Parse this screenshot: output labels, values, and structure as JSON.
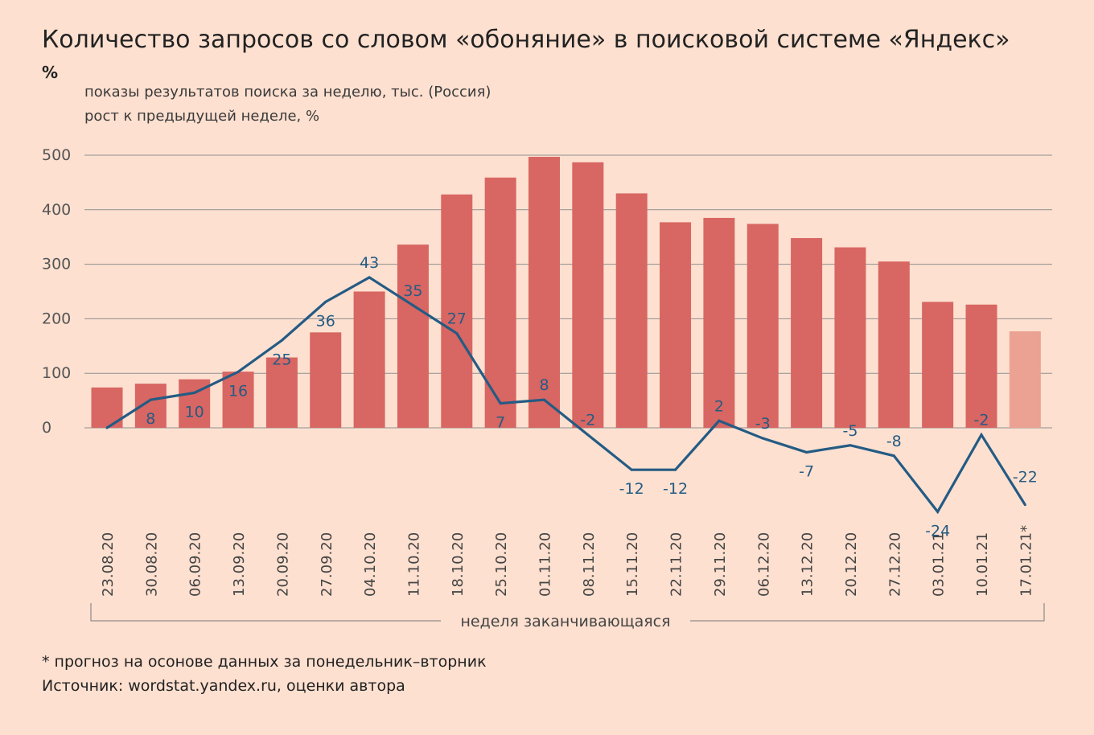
{
  "title": "Количество запросов со словом «обоняние» в поисковой системе «Яндекс»",
  "unit": "%",
  "legend": {
    "bars": "показы результатов поиска за неделю, тыс. (Россия)",
    "line": "рост к предыдущей неделе, %"
  },
  "footnote": "* прогноз на осонове данных за понедельник–вторник",
  "source": "Источник: wordstat.yandex.ru, оценки автора",
  "colors": {
    "bar": "#d86662",
    "bar_forecast": "#eba292",
    "line": "#245b84",
    "grid": "#8f8f8f",
    "background": "#fde0d0"
  },
  "chart_data": {
    "type": "bar",
    "xlabel": "неделя заканчивающаяся",
    "ylim": [
      0,
      500
    ],
    "yticks": [
      "0",
      "100",
      "200",
      "300",
      "400",
      "500"
    ],
    "categories": [
      "23.08.20",
      "30.08.20",
      "06.09.20",
      "13.09.20",
      "20.09.20",
      "27.09.20",
      "04.10.20",
      "11.10.20",
      "18.10.20",
      "25.10.20",
      "01.11.20",
      "08.11.20",
      "15.11.20",
      "22.11.20",
      "29.11.20",
      "06.12.20",
      "13.12.20",
      "20.12.20",
      "27.12.20",
      "03.01.21",
      "10.01.21",
      "17.01.21*"
    ],
    "series": [
      {
        "name": "показы результатов поиска за неделю, тыс. (Россия)",
        "type": "bar",
        "values": [
          74,
          81,
          89,
          103,
          129,
          175,
          250,
          336,
          428,
          459,
          497,
          487,
          430,
          377,
          385,
          374,
          348,
          331,
          305,
          231,
          226,
          177
        ],
        "forecast_last": true
      },
      {
        "name": "рост к предыдущей неделе, %",
        "type": "line",
        "values": [
          0,
          8,
          10,
          16,
          25,
          36,
          43,
          35,
          27,
          7,
          8,
          -2,
          -12,
          -12,
          2,
          -3,
          -7,
          -5,
          -8,
          -24,
          -2,
          -22
        ],
        "labels": [
          "",
          "8",
          "10",
          "16",
          "25",
          "36",
          "43",
          "35",
          "27",
          "7",
          "8",
          "-2",
          "-12",
          "-12",
          "2",
          "-3",
          "-7",
          "-5",
          "-8",
          "-24",
          "-2",
          "-22"
        ]
      }
    ]
  }
}
